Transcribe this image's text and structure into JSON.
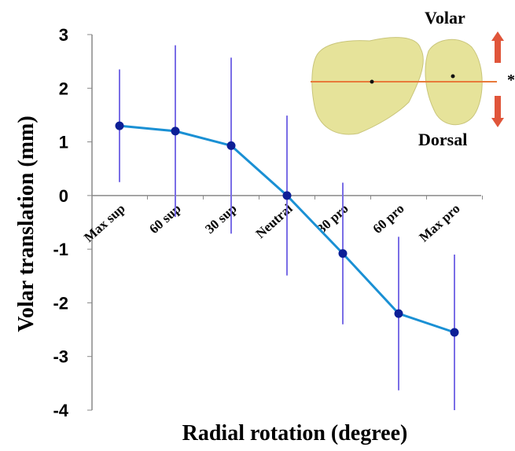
{
  "chart_data": {
    "type": "line",
    "categories": [
      "Max sup",
      "60 sup",
      "30 sup",
      "Neutral",
      "30 pro",
      "60 pro",
      "Max pro"
    ],
    "values": [
      1.3,
      1.2,
      0.93,
      0,
      -1.08,
      -2.2,
      -2.55
    ],
    "errors": [
      1.05,
      1.6,
      1.64,
      1.49,
      1.32,
      1.43,
      1.45
    ],
    "color": "#1a90d4",
    "marker_color": "#0d1f96",
    "error_color": "#7a6ee6",
    "ylim": [
      -4,
      3
    ],
    "yticks": [
      -4,
      -3,
      -2,
      -1,
      0,
      1,
      2,
      3
    ],
    "xlabel": "Radial rotation (degree)",
    "ylabel": "Volar translation (mm)",
    "annotations": {
      "top": "Volar",
      "bottom": "Dorsal",
      "mark": "*"
    }
  }
}
